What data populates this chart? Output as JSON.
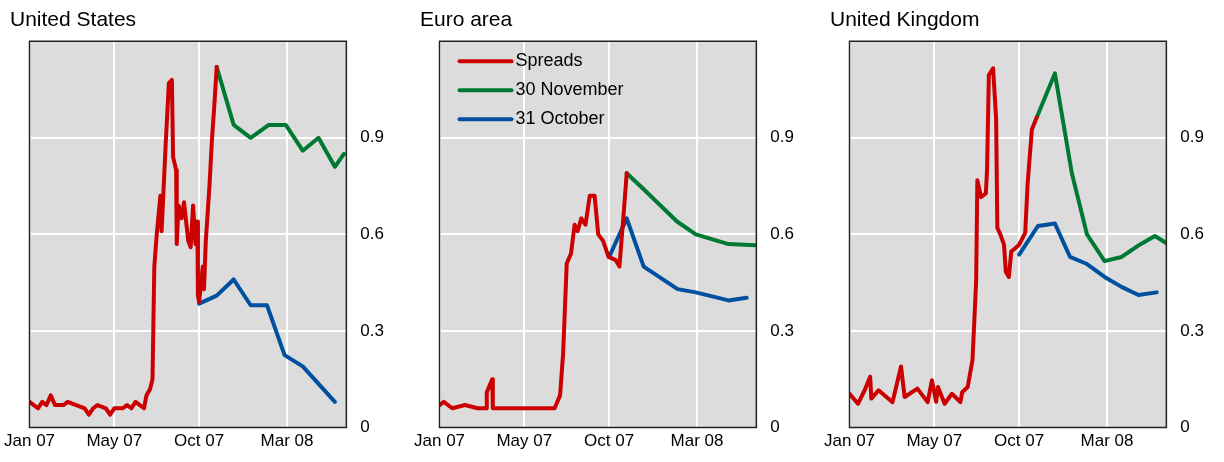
{
  "chart_data": [
    {
      "type": "line",
      "title": "United States",
      "xlim": [
        "2007-01-01",
        "2008-06-07"
      ],
      "xticks": [
        {
          "value": "2007-01-01",
          "label": "Jan 07"
        },
        {
          "value": "2007-05-21",
          "label": "May 07"
        },
        {
          "value": "2007-10-08",
          "label": "Oct 07"
        },
        {
          "value": "2008-03-01",
          "label": "Mar 08"
        }
      ],
      "ylim": [
        0,
        1.2
      ],
      "yticks": [
        0,
        0.3,
        0.6,
        0.9
      ],
      "grid": true,
      "legend": false,
      "marker": "none",
      "line_style": "solid",
      "series": [
        {
          "color": "#cc0000",
          "x": [
            "2007-01-01",
            "2007-01-08",
            "2007-01-15",
            "2007-01-22",
            "2007-01-29",
            "2007-02-05",
            "2007-02-12",
            "2007-02-26",
            "2007-03-05",
            "2007-03-19",
            "2007-04-02",
            "2007-04-09",
            "2007-04-16",
            "2007-04-23",
            "2007-05-07",
            "2007-05-14",
            "2007-05-21",
            "2007-06-04",
            "2007-06-11",
            "2007-06-18",
            "2007-06-25",
            "2007-07-02",
            "2007-07-09",
            "2007-07-13",
            "2007-07-19",
            "2007-07-23",
            "2007-07-26",
            "2007-07-30",
            "2007-08-05",
            "2007-08-07",
            "2007-08-14",
            "2007-08-19",
            "2007-08-24",
            "2007-08-26",
            "2007-08-31",
            "2007-09-01",
            "2007-09-04",
            "2007-09-09",
            "2007-09-13",
            "2007-09-20",
            "2007-09-24",
            "2007-09-28",
            "2007-10-02",
            "2007-10-05",
            "2007-10-06",
            "2007-10-08",
            "2007-10-14",
            "2007-10-16",
            "2007-10-19",
            "2007-10-25",
            "2007-10-29",
            "2007-11-02",
            "2007-11-06"
          ],
          "values": [
            0.08,
            0.07,
            0.06,
            0.08,
            0.07,
            0.1,
            0.07,
            0.07,
            0.08,
            0.07,
            0.06,
            0.04,
            0.06,
            0.07,
            0.06,
            0.04,
            0.06,
            0.06,
            0.07,
            0.06,
            0.08,
            0.07,
            0.06,
            0.1,
            0.12,
            0.15,
            0.5,
            0.6,
            0.72,
            0.61,
            0.89,
            1.07,
            1.08,
            0.84,
            0.8,
            0.57,
            0.69,
            0.65,
            0.7,
            0.58,
            0.56,
            0.69,
            0.57,
            0.64,
            0.41,
            0.39,
            0.5,
            0.43,
            0.58,
            0.75,
            0.89,
            1.0,
            1.12
          ]
        },
        {
          "color": "#007a33",
          "x": [
            "2007-11-06",
            "2007-12-04",
            "2008-01-01",
            "2008-01-31",
            "2008-02-28",
            "2008-03-27",
            "2008-04-22",
            "2008-05-19",
            "2008-06-03"
          ],
          "values": [
            1.12,
            0.94,
            0.9,
            0.94,
            0.94,
            0.86,
            0.9,
            0.81,
            0.85
          ]
        },
        {
          "color": "#0050a0",
          "x": [
            "2007-10-08",
            "2007-11-06",
            "2007-12-04",
            "2008-01-01",
            "2008-01-28",
            "2008-02-26",
            "2008-03-27",
            "2008-05-19"
          ],
          "values": [
            0.385,
            0.41,
            0.46,
            0.38,
            0.38,
            0.225,
            0.19,
            0.08
          ]
        }
      ]
    },
    {
      "type": "line",
      "title": "Euro area",
      "xlim": [
        "2007-01-01",
        "2008-06-07"
      ],
      "xticks": [
        {
          "value": "2007-01-01",
          "label": "Jan 07"
        },
        {
          "value": "2007-05-21",
          "label": "May 07"
        },
        {
          "value": "2007-10-08",
          "label": "Oct 07"
        },
        {
          "value": "2008-03-01",
          "label": "Mar 08"
        }
      ],
      "ylim": [
        0,
        1.2
      ],
      "yticks": [
        0,
        0.3,
        0.6,
        0.9
      ],
      "grid": true,
      "legend": "top left",
      "marker": "none",
      "line_style": "solid",
      "series": [
        {
          "name": "Spreads",
          "color": "#cc0000",
          "x": [
            "2007-01-01",
            "2007-01-08",
            "2007-01-22",
            "2007-02-12",
            "2007-03-05",
            "2007-03-19",
            "2007-03-20",
            "2007-03-29",
            "2007-03-30",
            "2007-04-23",
            "2007-05-21",
            "2007-06-18",
            "2007-07-10",
            "2007-07-19",
            "2007-07-24",
            "2007-07-30",
            "2007-08-06",
            "2007-08-12",
            "2007-08-17",
            "2007-08-23",
            "2007-08-30",
            "2007-09-06",
            "2007-09-14",
            "2007-09-20",
            "2007-09-28",
            "2007-10-07",
            "2007-10-19",
            "2007-10-25",
            "2007-11-02",
            "2007-11-06"
          ],
          "values": [
            0.07,
            0.08,
            0.06,
            0.07,
            0.06,
            0.06,
            0.11,
            0.15,
            0.06,
            0.06,
            0.06,
            0.06,
            0.06,
            0.1,
            0.23,
            0.51,
            0.54,
            0.63,
            0.61,
            0.65,
            0.63,
            0.72,
            0.72,
            0.6,
            0.58,
            0.53,
            0.52,
            0.5,
            0.69,
            0.79
          ]
        },
        {
          "name": "30 November",
          "color": "#007a33",
          "x": [
            "2007-11-06",
            "2007-12-04",
            "2008-01-28",
            "2008-02-28",
            "2008-04-22",
            "2008-06-05"
          ],
          "values": [
            0.79,
            0.74,
            0.64,
            0.6,
            0.57,
            0.566
          ]
        },
        {
          "name": "31 October",
          "color": "#0050a0",
          "x": [
            "2007-10-08",
            "2007-11-06",
            "2007-12-04",
            "2008-01-29",
            "2008-02-28",
            "2008-04-22",
            "2008-05-22"
          ],
          "values": [
            0.53,
            0.65,
            0.5,
            0.43,
            0.42,
            0.395,
            0.403
          ]
        }
      ]
    },
    {
      "type": "line",
      "title": "United Kingdom",
      "xlim": [
        "2007-01-01",
        "2008-06-07"
      ],
      "xticks": [
        {
          "value": "2007-01-01",
          "label": "Jan 07"
        },
        {
          "value": "2007-05-21",
          "label": "May 07"
        },
        {
          "value": "2007-10-08",
          "label": "Oct 07"
        },
        {
          "value": "2008-03-01",
          "label": "Mar 08"
        }
      ],
      "ylim": [
        0,
        1.2
      ],
      "yticks": [
        0,
        0.3,
        0.6,
        0.9
      ],
      "grid": true,
      "legend": false,
      "marker": "none",
      "line_style": "solid",
      "series": [
        {
          "color": "#cc0000",
          "x": [
            "2007-01-01",
            "2007-01-15",
            "2007-01-26",
            "2007-02-04",
            "2007-02-06",
            "2007-02-18",
            "2007-03-13",
            "2007-03-27",
            "2007-04-02",
            "2007-04-23",
            "2007-05-10",
            "2007-05-17",
            "2007-05-24",
            "2007-05-27",
            "2007-06-07",
            "2007-06-19",
            "2007-07-03",
            "2007-07-06",
            "2007-07-15",
            "2007-07-23",
            "2007-07-29",
            "2007-07-31",
            "2007-08-06",
            "2007-08-14",
            "2007-08-16",
            "2007-08-19",
            "2007-08-26",
            "2007-08-31",
            "2007-09-02",
            "2007-09-07",
            "2007-09-13",
            "2007-09-16",
            "2007-09-21",
            "2007-09-25",
            "2007-10-02",
            "2007-10-08",
            "2007-10-18",
            "2007-10-22",
            "2007-10-29",
            "2007-11-06"
          ],
          "values": [
            0.105,
            0.074,
            0.116,
            0.158,
            0.09,
            0.116,
            0.079,
            0.19,
            0.095,
            0.121,
            0.079,
            0.147,
            0.08,
            0.126,
            0.074,
            0.105,
            0.079,
            0.11,
            0.126,
            0.21,
            0.453,
            0.768,
            0.716,
            0.727,
            0.8,
            1.095,
            1.116,
            0.958,
            0.62,
            0.6,
            0.568,
            0.484,
            0.468,
            0.547,
            0.558,
            0.568,
            0.605,
            0.758,
            0.926,
            0.963
          ]
        },
        {
          "color": "#007a33",
          "x": [
            "2007-11-06",
            "2007-12-06",
            "2008-01-03",
            "2008-01-28",
            "2008-02-26",
            "2008-03-25",
            "2008-04-24",
            "2008-05-19",
            "2008-06-06"
          ],
          "values": [
            0.963,
            1.1,
            0.79,
            0.6,
            0.517,
            0.53,
            0.568,
            0.595,
            0.574
          ]
        },
        {
          "color": "#0050a0",
          "x": [
            "2007-10-08",
            "2007-11-08",
            "2007-12-06",
            "2007-12-31",
            "2008-01-28",
            "2008-02-26",
            "2008-03-25",
            "2008-04-22",
            "2008-05-22"
          ],
          "values": [
            0.537,
            0.626,
            0.634,
            0.53,
            0.508,
            0.468,
            0.437,
            0.412,
            0.42
          ]
        }
      ]
    }
  ]
}
